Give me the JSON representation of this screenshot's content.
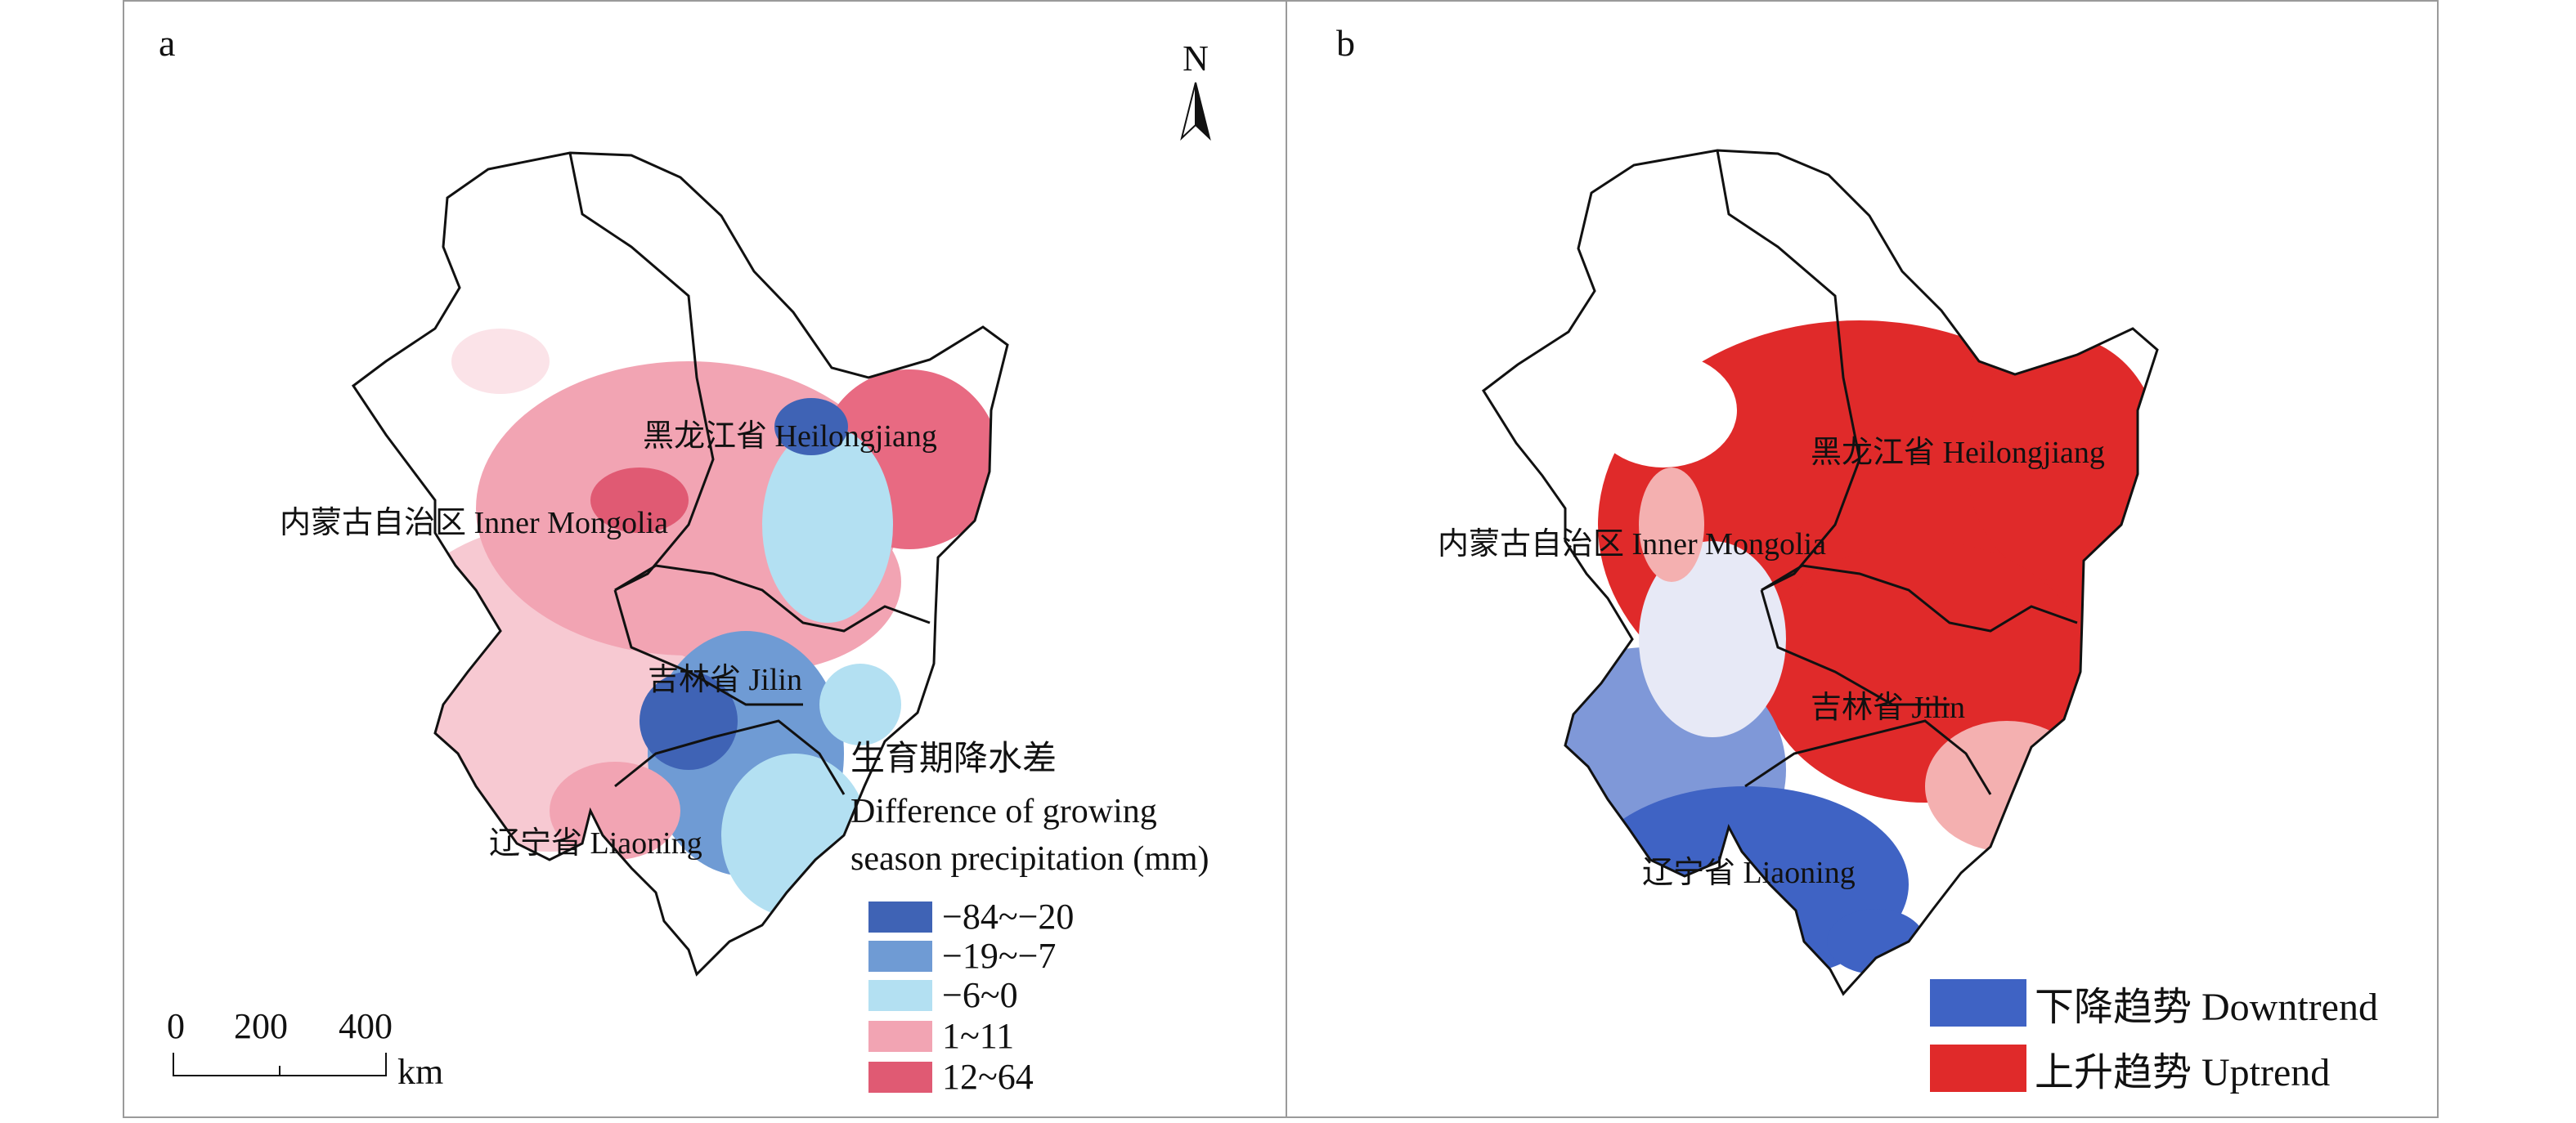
{
  "panel_a": {
    "letter": "a",
    "north": "N",
    "regions": {
      "heilongjiang": "黑龙江省 Heilongjiang",
      "inner_mongolia": "内蒙古自治区 Inner Mongolia",
      "jilin": "吉林省 Jilin",
      "liaoning": "辽宁省 Liaoning"
    },
    "legend": {
      "title_line1": "生育期降水差",
      "title_line2": "Difference of growing",
      "title_line3": "season precipitation (mm)",
      "items": [
        {
          "label": "−84~−20",
          "color": "#3f63b5"
        },
        {
          "label": "−19~−7",
          "color": "#6f9bd4"
        },
        {
          "label": "−6~0",
          "color": "#b3e0f2"
        },
        {
          "label": "1~11",
          "color": "#f2a4b3"
        },
        {
          "label": "12~64",
          "color": "#e05a73"
        }
      ]
    },
    "scale": {
      "ticks": [
        "0",
        "200",
        "400"
      ],
      "unit": "km"
    }
  },
  "panel_b": {
    "letter": "b",
    "regions": {
      "heilongjiang": "黑龙江省 Heilongjiang",
      "inner_mongolia": "内蒙古自治区 Inner Mongolia",
      "jilin": "吉林省 Jilin",
      "liaoning": "辽宁省 Liaoning"
    },
    "legend": {
      "items": [
        {
          "label": "下降趋势 Downtrend",
          "color": "#3f63c4"
        },
        {
          "label": "上升趋势 Uptrend",
          "color": "#e02a2a"
        }
      ]
    }
  }
}
